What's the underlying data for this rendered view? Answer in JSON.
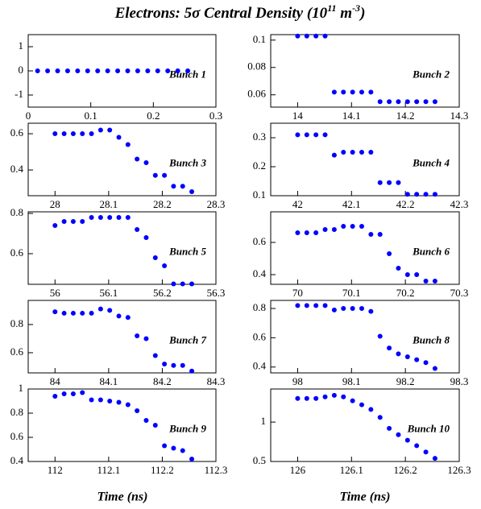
{
  "title": {
    "text": "Electrons: 5σ Central Density  (10",
    "sup1": "11",
    "mid": " m",
    "sup2": "-3",
    "end": ")"
  },
  "x_labels": [
    "Time (ns)",
    "Time (ns)"
  ],
  "chart_data": [
    {
      "type": "scatter",
      "label": "Bunch 1",
      "color": "#0000ff",
      "xlim": [
        0,
        0.3
      ],
      "xticks": [
        0,
        0.1,
        0.2,
        0.3
      ],
      "ylim": [
        -1.5,
        1.5
      ],
      "yticks": [
        -1,
        0,
        1
      ],
      "x": [
        0.015,
        0.031,
        0.047,
        0.063,
        0.079,
        0.095,
        0.111,
        0.127,
        0.143,
        0.159,
        0.175,
        0.191,
        0.207,
        0.223,
        0.239,
        0.255
      ],
      "values": [
        0,
        0,
        0,
        0,
        0,
        0,
        0,
        0,
        0,
        0,
        0,
        0,
        0,
        0,
        0,
        0
      ]
    },
    {
      "type": "scatter",
      "label": "Bunch 2",
      "color": "#0000ff",
      "xlim": [
        13.95,
        14.3
      ],
      "xticks": [
        14,
        14.1,
        14.2,
        14.3
      ],
      "ylim": [
        0.051,
        0.104
      ],
      "yticks": [
        0.06,
        0.08,
        0.1
      ],
      "x": [
        14,
        14.017,
        14.034,
        14.051,
        14.068,
        14.085,
        14.102,
        14.119,
        14.136,
        14.153,
        14.17,
        14.187,
        14.204,
        14.221,
        14.238,
        14.255
      ],
      "values": [
        0.103,
        0.103,
        0.103,
        0.103,
        0.062,
        0.062,
        0.062,
        0.062,
        0.062,
        0.055,
        0.055,
        0.055,
        0.055,
        0.055,
        0.055,
        0.055
      ]
    },
    {
      "type": "scatter",
      "label": "Bunch 3",
      "color": "#0000ff",
      "xlim": [
        27.95,
        28.3
      ],
      "xticks": [
        28,
        28.1,
        28.2,
        28.3
      ],
      "ylim": [
        0.258,
        0.658
      ],
      "yticks": [
        0.4,
        0.6
      ],
      "x": [
        28,
        28.017,
        28.034,
        28.051,
        28.068,
        28.085,
        28.102,
        28.119,
        28.136,
        28.153,
        28.17,
        28.187,
        28.204,
        28.221,
        28.238,
        28.255
      ],
      "values": [
        0.6,
        0.6,
        0.6,
        0.6,
        0.6,
        0.62,
        0.62,
        0.58,
        0.54,
        0.46,
        0.44,
        0.37,
        0.37,
        0.31,
        0.31,
        0.28
      ]
    },
    {
      "type": "scatter",
      "label": "Bunch 4",
      "color": "#0000ff",
      "xlim": [
        41.95,
        42.3
      ],
      "xticks": [
        42,
        42.1,
        42.2,
        42.3
      ],
      "ylim": [
        0.1,
        0.35
      ],
      "yticks": [
        0.1,
        0.2,
        0.3
      ],
      "x": [
        42,
        42.017,
        42.034,
        42.051,
        42.068,
        42.085,
        42.102,
        42.119,
        42.136,
        42.153,
        42.17,
        42.187,
        42.204,
        42.221,
        42.238,
        42.255
      ],
      "values": [
        0.31,
        0.31,
        0.31,
        0.31,
        0.24,
        0.25,
        0.25,
        0.25,
        0.25,
        0.145,
        0.145,
        0.145,
        0.105,
        0.105,
        0.105,
        0.105
      ]
    },
    {
      "type": "scatter",
      "label": "Bunch 5",
      "color": "#0000ff",
      "xlim": [
        55.95,
        56.3
      ],
      "xticks": [
        56,
        56.1,
        56.2,
        56.3
      ],
      "ylim": [
        0.448,
        0.808
      ],
      "yticks": [
        0.6,
        0.8
      ],
      "x": [
        56,
        56.017,
        56.034,
        56.051,
        56.068,
        56.085,
        56.102,
        56.119,
        56.136,
        56.153,
        56.17,
        56.187,
        56.204,
        56.221,
        56.238,
        56.255
      ],
      "values": [
        0.74,
        0.76,
        0.76,
        0.76,
        0.78,
        0.78,
        0.78,
        0.78,
        0.78,
        0.72,
        0.68,
        0.58,
        0.54,
        0.45,
        0.45,
        0.45
      ]
    },
    {
      "type": "scatter",
      "label": "Bunch 6",
      "color": "#0000ff",
      "xlim": [
        69.95,
        70.3
      ],
      "xticks": [
        70,
        70.1,
        70.2,
        70.3
      ],
      "ylim": [
        0.34,
        0.79
      ],
      "yticks": [
        0.4,
        0.6
      ],
      "x": [
        70,
        70.017,
        70.034,
        70.051,
        70.068,
        70.085,
        70.102,
        70.119,
        70.136,
        70.153,
        70.17,
        70.187,
        70.204,
        70.221,
        70.238,
        70.255
      ],
      "values": [
        0.66,
        0.66,
        0.66,
        0.68,
        0.68,
        0.7,
        0.7,
        0.7,
        0.65,
        0.65,
        0.53,
        0.44,
        0.4,
        0.4,
        0.36,
        0.36
      ]
    },
    {
      "type": "scatter",
      "label": "Bunch 7",
      "color": "#0000ff",
      "xlim": [
        83.95,
        84.3
      ],
      "xticks": [
        84,
        84.1,
        84.2,
        84.3
      ],
      "ylim": [
        0.457,
        0.971
      ],
      "yticks": [
        0.6,
        0.8
      ],
      "x": [
        84,
        84.017,
        84.034,
        84.051,
        84.068,
        84.085,
        84.102,
        84.119,
        84.136,
        84.153,
        84.17,
        84.187,
        84.204,
        84.221,
        84.238,
        84.255
      ],
      "values": [
        0.89,
        0.88,
        0.88,
        0.88,
        0.88,
        0.91,
        0.9,
        0.86,
        0.85,
        0.72,
        0.7,
        0.58,
        0.52,
        0.51,
        0.51,
        0.47
      ]
    },
    {
      "type": "scatter",
      "label": "Bunch 8",
      "color": "#0000ff",
      "xlim": [
        97.95,
        98.3
      ],
      "xticks": [
        98,
        98.1,
        98.2,
        98.3
      ],
      "ylim": [
        0.36,
        0.855
      ],
      "yticks": [
        0.4,
        0.6,
        0.8
      ],
      "x": [
        98,
        98.017,
        98.034,
        98.051,
        98.068,
        98.085,
        98.102,
        98.119,
        98.136,
        98.153,
        98.17,
        98.187,
        98.204,
        98.221,
        98.238,
        98.255
      ],
      "values": [
        0.82,
        0.82,
        0.82,
        0.82,
        0.79,
        0.8,
        0.8,
        0.8,
        0.78,
        0.61,
        0.53,
        0.49,
        0.47,
        0.45,
        0.43,
        0.39
      ]
    },
    {
      "type": "scatter",
      "label": "Bunch 9",
      "color": "#0000ff",
      "xlim": [
        111.95,
        112.3
      ],
      "xticks": [
        112,
        112.1,
        112.2,
        112.3
      ],
      "ylim": [
        0.4,
        1.0
      ],
      "yticks": [
        0.4,
        0.6,
        0.8,
        1
      ],
      "x": [
        112,
        112.017,
        112.034,
        112.051,
        112.068,
        112.085,
        112.102,
        112.119,
        112.136,
        112.153,
        112.17,
        112.187,
        112.204,
        112.221,
        112.238,
        112.255
      ],
      "values": [
        0.94,
        0.96,
        0.96,
        0.97,
        0.91,
        0.91,
        0.9,
        0.89,
        0.87,
        0.82,
        0.74,
        0.7,
        0.53,
        0.51,
        0.49,
        0.42
      ]
    },
    {
      "type": "scatter",
      "label": "Bunch 10",
      "color": "#0000ff",
      "xlim": [
        125.95,
        126.3
      ],
      "xticks": [
        126,
        126.1,
        126.2,
        126.3
      ],
      "ylim": [
        0.5,
        1.42
      ],
      "yticks": [
        0.5,
        1
      ],
      "x": [
        126,
        126.017,
        126.034,
        126.051,
        126.068,
        126.085,
        126.102,
        126.119,
        126.136,
        126.153,
        126.17,
        126.187,
        126.204,
        126.221,
        126.238,
        126.255
      ],
      "values": [
        1.3,
        1.3,
        1.3,
        1.32,
        1.34,
        1.32,
        1.27,
        1.22,
        1.16,
        1.06,
        0.92,
        0.84,
        0.77,
        0.7,
        0.62,
        0.54
      ]
    }
  ]
}
